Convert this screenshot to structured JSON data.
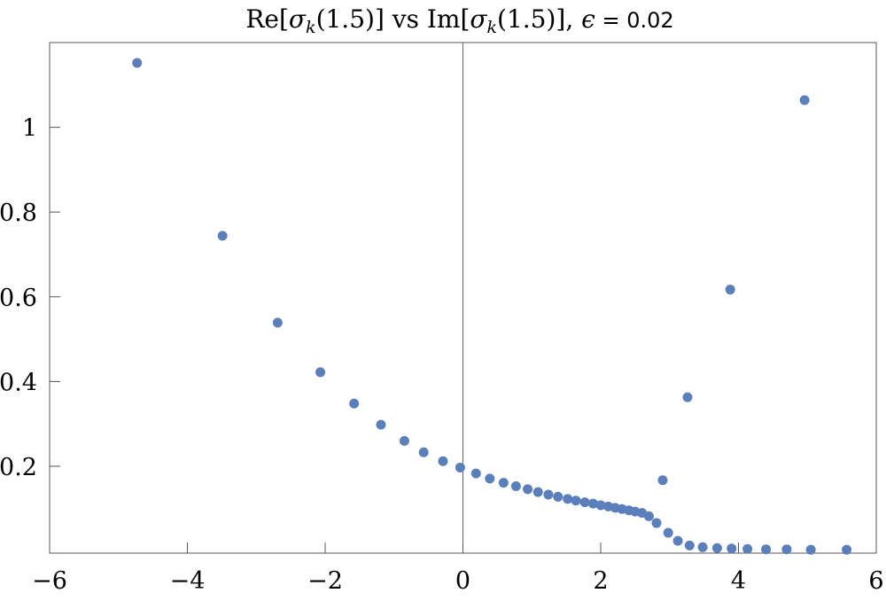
{
  "chart_data": {
    "type": "scatter",
    "title": "Re[σ_k(1.5)] vs Im[σ_k(1.5)], ϵ = 0.02",
    "title_parts": {
      "re": "Re[",
      "sigma1": "σ",
      "k1": "k",
      "arg1": "(1.5)] vs Im[",
      "sigma2": "σ",
      "k2": "k",
      "arg2": "(1.5)], ",
      "eps": "ϵ",
      "rest": " = 0.02"
    },
    "xlabel": "",
    "ylabel": "",
    "xlim": [
      -6,
      6
    ],
    "ylim": [
      -0.005,
      1.2
    ],
    "x_ticks": [
      {
        "value": -6,
        "label": "−6"
      },
      {
        "value": -4,
        "label": "−4"
      },
      {
        "value": -2,
        "label": "−2"
      },
      {
        "value": 0,
        "label": "0"
      },
      {
        "value": 2,
        "label": "2"
      },
      {
        "value": 4,
        "label": "4"
      },
      {
        "value": 6,
        "label": "6"
      }
    ],
    "y_ticks": [
      {
        "value": 0.2,
        "label": "0.2"
      },
      {
        "value": 0.4,
        "label": "0.4"
      },
      {
        "value": 0.6,
        "label": "0.6"
      },
      {
        "value": 0.8,
        "label": "0.8"
      },
      {
        "value": 1.0,
        "label": "1"
      }
    ],
    "grid": false,
    "legend": "none",
    "marker_color": "#5b7fba",
    "series": [
      {
        "points": [
          [
            -4.73,
            1.152
          ],
          [
            -3.49,
            0.744
          ],
          [
            -2.69,
            0.539
          ],
          [
            -2.07,
            0.422
          ],
          [
            -1.58,
            0.348
          ],
          [
            -1.19,
            0.298
          ],
          [
            -0.85,
            0.26
          ],
          [
            -0.57,
            0.233
          ],
          [
            -0.29,
            0.212
          ],
          [
            -0.04,
            0.197
          ],
          [
            0.19,
            0.183
          ],
          [
            0.39,
            0.171
          ],
          [
            0.59,
            0.161
          ],
          [
            0.77,
            0.153
          ],
          [
            0.94,
            0.146
          ],
          [
            1.09,
            0.139
          ],
          [
            1.24,
            0.133
          ],
          [
            1.38,
            0.128
          ],
          [
            1.52,
            0.123
          ],
          [
            1.64,
            0.119
          ],
          [
            1.77,
            0.115
          ],
          [
            1.89,
            0.112
          ],
          [
            2.0,
            0.108
          ],
          [
            2.11,
            0.105
          ],
          [
            2.21,
            0.102
          ],
          [
            2.31,
            0.099
          ],
          [
            2.41,
            0.096
          ],
          [
            2.5,
            0.093
          ],
          [
            2.6,
            0.09
          ],
          [
            2.7,
            0.082
          ],
          [
            2.81,
            0.066
          ],
          [
            2.9,
            0.167
          ],
          [
            2.98,
            0.043
          ],
          [
            3.12,
            0.024
          ],
          [
            3.29,
            0.013
          ],
          [
            3.48,
            0.009
          ],
          [
            3.69,
            0.007
          ],
          [
            3.9,
            0.006
          ],
          [
            4.13,
            0.005
          ],
          [
            4.4,
            0.004
          ],
          [
            4.7,
            0.004
          ],
          [
            5.05,
            0.003
          ],
          [
            5.57,
            0.003
          ],
          [
            3.26,
            0.363
          ],
          [
            3.88,
            0.617
          ],
          [
            4.96,
            1.064
          ]
        ]
      }
    ]
  }
}
